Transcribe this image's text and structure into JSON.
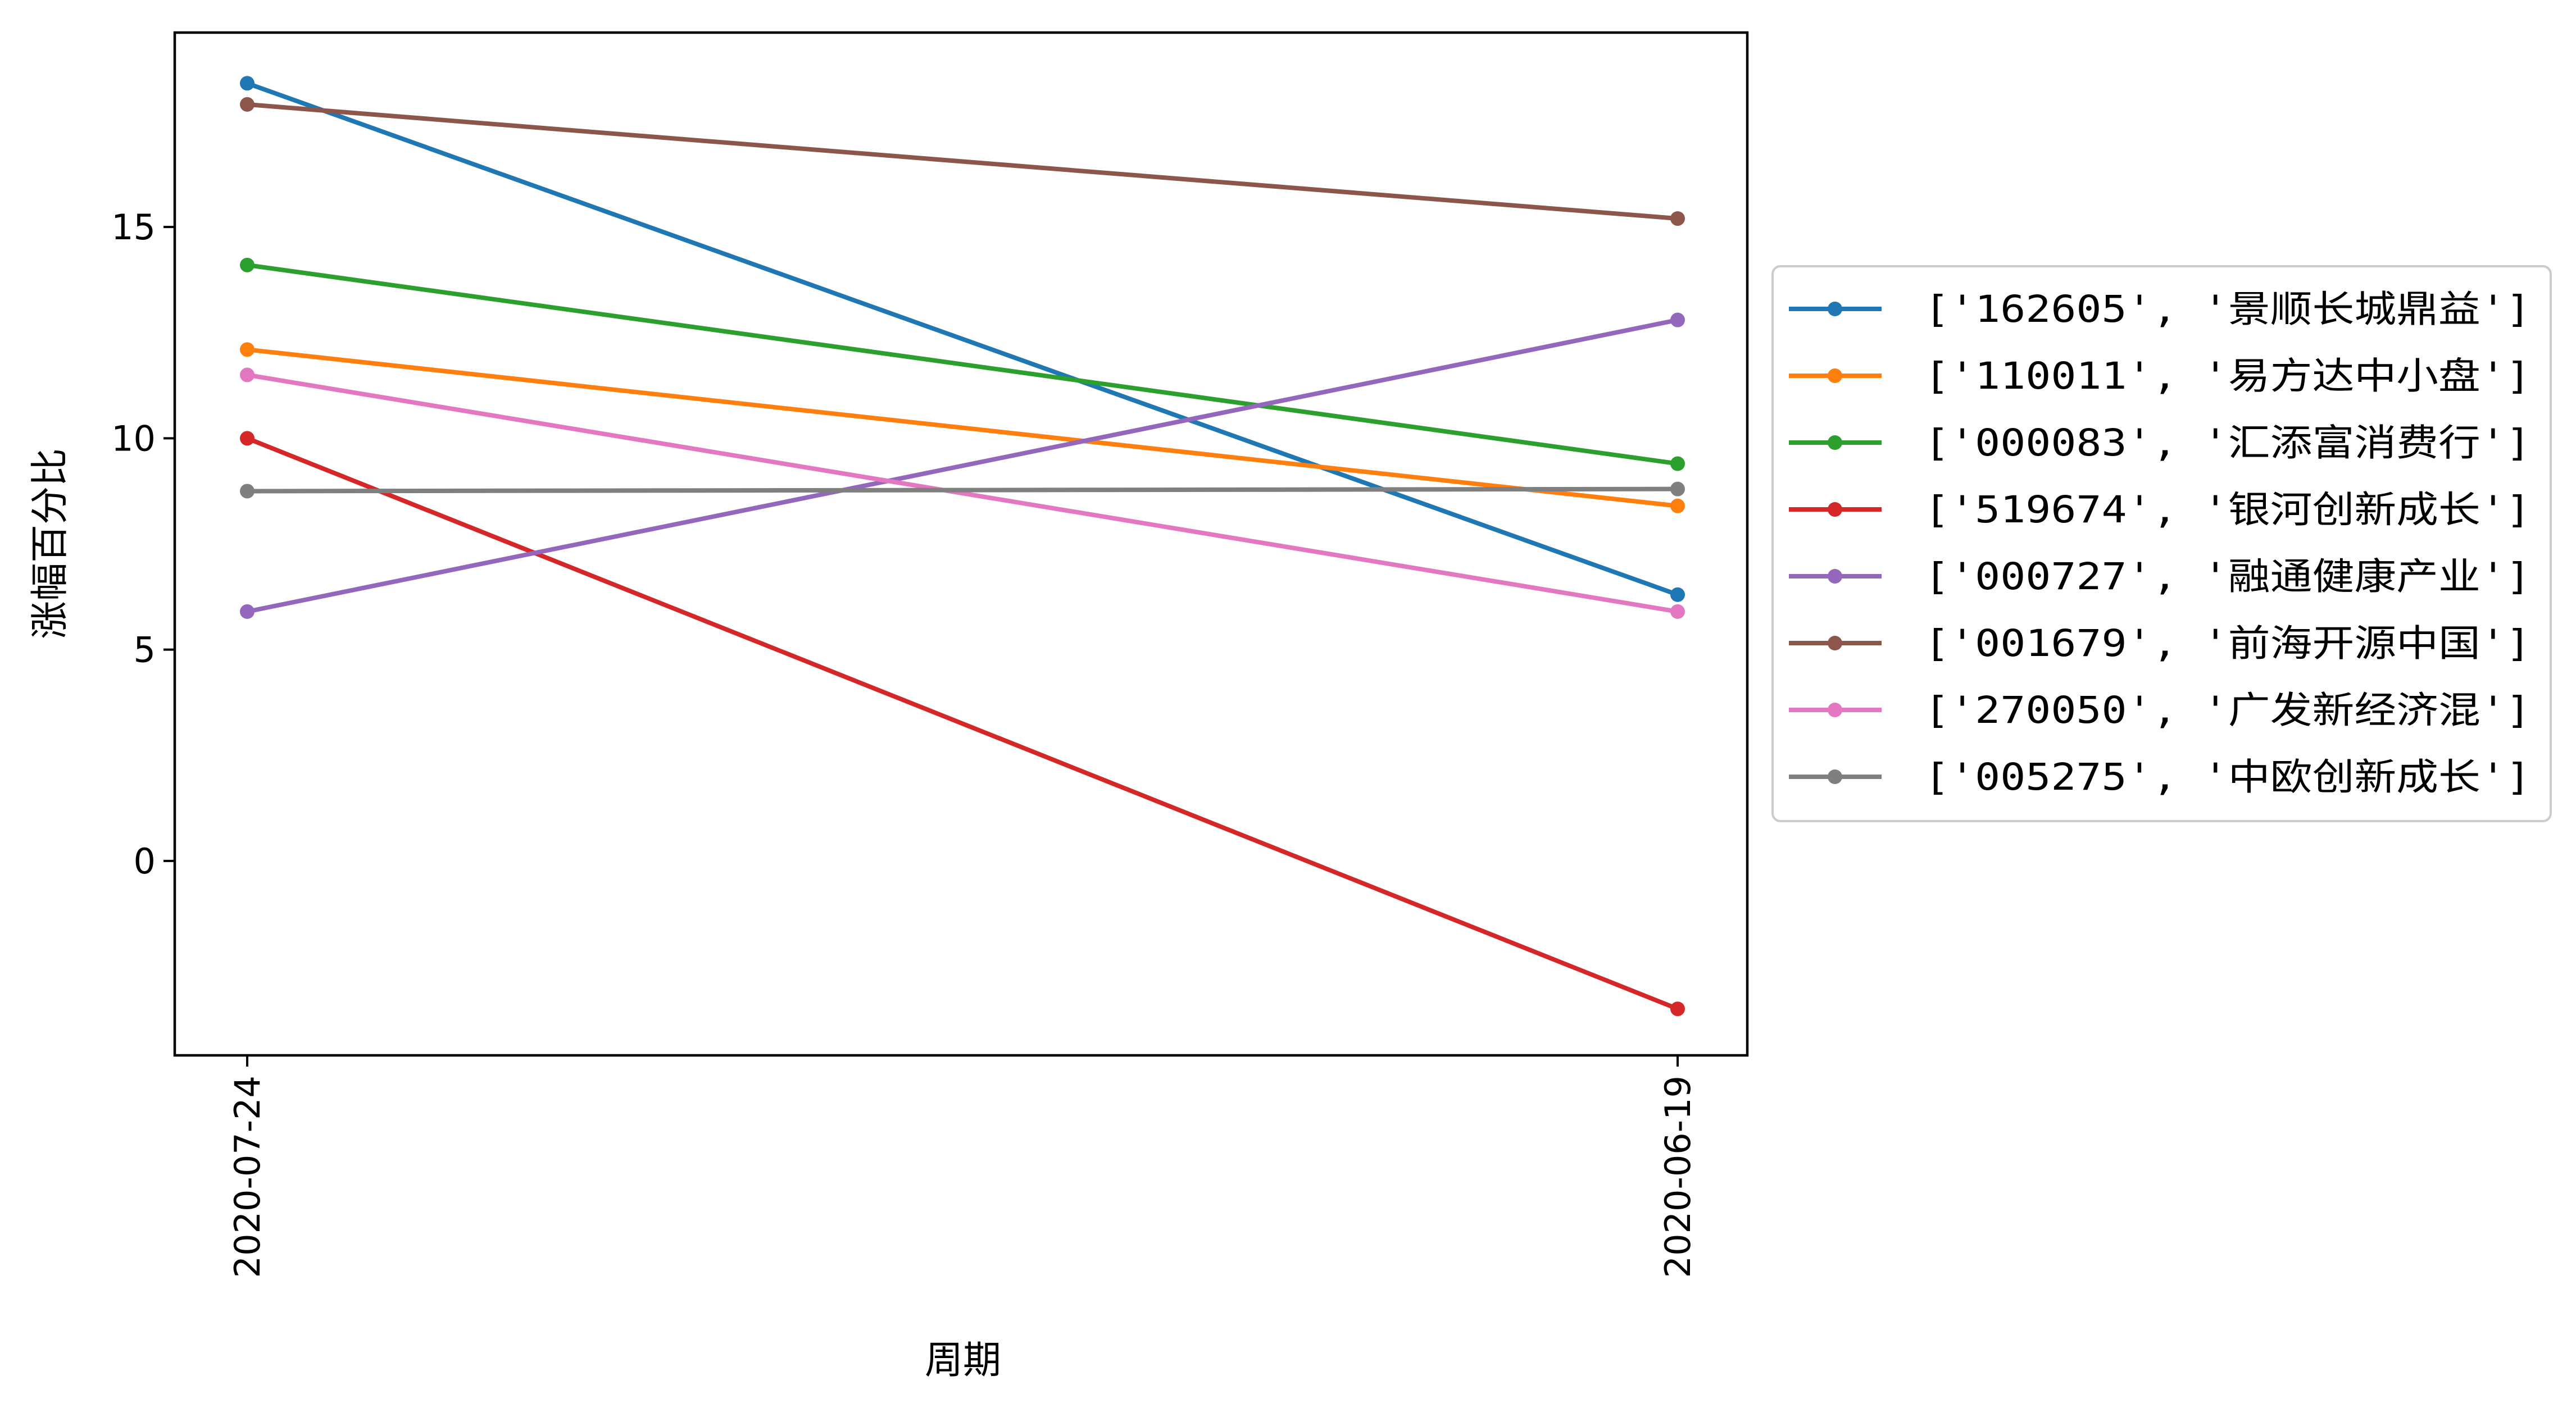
{
  "chart_data": {
    "type": "line",
    "title": "",
    "xlabel": "周期",
    "ylabel": "涨幅百分比",
    "categories": [
      "2020-07-24",
      "2020-06-19"
    ],
    "ylim": [
      -4.6,
      19.6
    ],
    "yticks": [
      0,
      5,
      10,
      15
    ],
    "grid": false,
    "legend_position": "right, outside the plot area",
    "series": [
      {
        "name": "['162605', '景顺长城鼎益']",
        "color": "#1f77b4",
        "values": [
          18.4,
          6.3
        ]
      },
      {
        "name": "['110011', '易方达中小盘']",
        "color": "#ff7f0e",
        "values": [
          12.1,
          8.4
        ]
      },
      {
        "name": "['000083', '汇添富消费行']",
        "color": "#2ca02c",
        "values": [
          14.1,
          9.4
        ]
      },
      {
        "name": "['519674', '银河创新成长']",
        "color": "#d62728",
        "values": [
          10.0,
          -3.5
        ]
      },
      {
        "name": "['000727', '融通健康产业']",
        "color": "#9467bd",
        "values": [
          5.9,
          12.8
        ]
      },
      {
        "name": "['001679', '前海开源中国']",
        "color": "#8c564b",
        "values": [
          17.9,
          15.2
        ]
      },
      {
        "name": "['270050', '广发新经济混']",
        "color": "#e377c2",
        "values": [
          11.5,
          5.9
        ]
      },
      {
        "name": "['005275', '中欧创新成长']",
        "color": "#7f7f7f",
        "values": [
          8.75,
          8.8
        ]
      }
    ]
  }
}
